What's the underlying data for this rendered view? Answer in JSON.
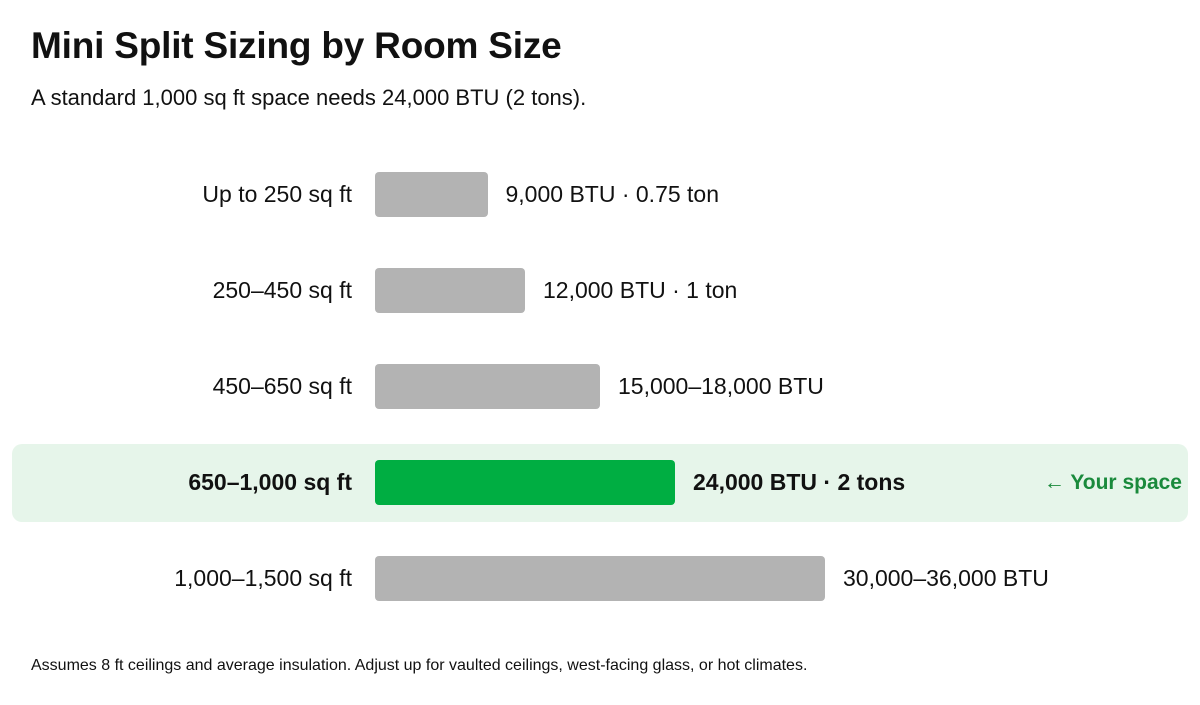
{
  "colors": {
    "bar_default": "#b3b3b3",
    "bar_highlight": "#00ae42",
    "row_highlight": "#e6f5ea",
    "callout_text": "#1a8a3c"
  },
  "callout": "← Your space",
  "footnote": "Assumes 8 ft ceilings and average insulation. Adjust up for vaulted ceilings, west-facing glass, or hot climates.",
  "chart_data": {
    "type": "bar",
    "orientation": "horizontal",
    "title": "Mini Split Sizing by Room Size",
    "subtitle": "A standard 1,000 sq ft space needs 24,000 BTU (2 tons).",
    "categories": [
      "Up to 250 sq ft",
      "250–450 sq ft",
      "450–650 sq ft",
      "650–1,000 sq ft",
      "1,000–1,500 sq ft"
    ],
    "values": [
      9000,
      12000,
      18000,
      24000,
      36000
    ],
    "value_labels": [
      "9,000 BTU · 0.75 ton",
      "12,000 BTU · 1 ton",
      "15,000–18,000 BTU",
      "24,000 BTU · 2 tons",
      "30,000–36,000 BTU"
    ],
    "highlight_index": 3,
    "xlim": [
      0,
      36000
    ],
    "grid": false,
    "legend": "none"
  }
}
